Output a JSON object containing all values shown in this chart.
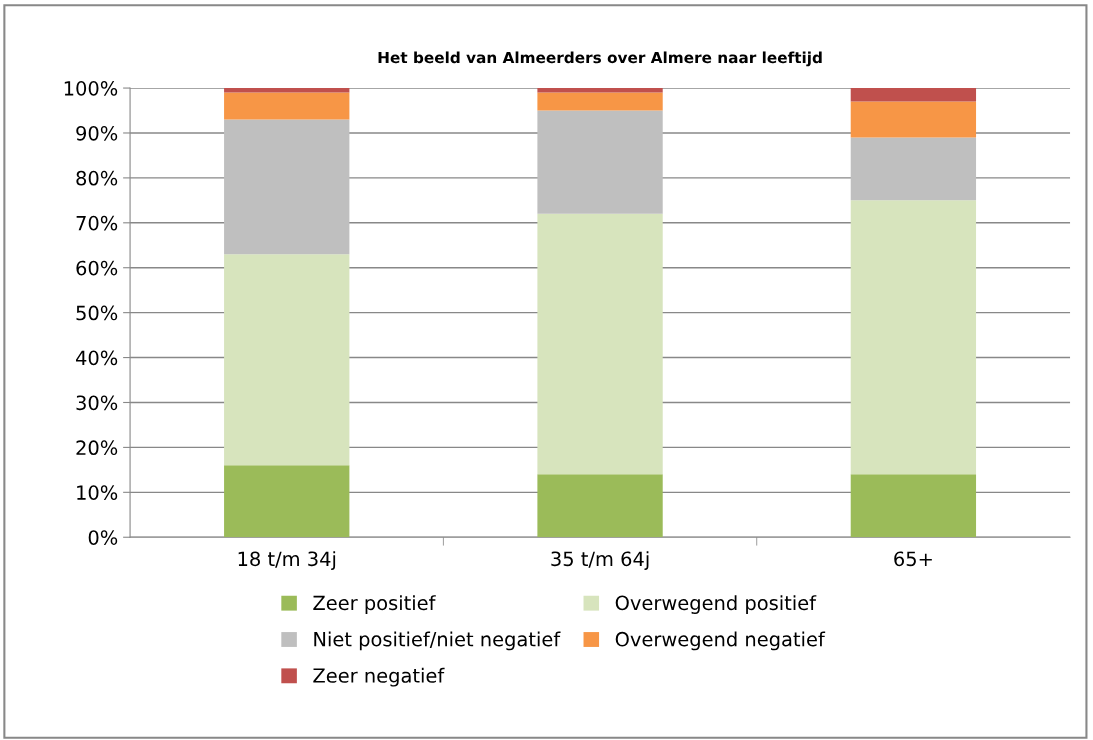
{
  "chart_data": {
    "type": "bar",
    "stacked": true,
    "title": "Het beeld van Almeerders over Almere naar leeftijd",
    "categories": [
      "18 t/m 34j",
      "35 t/m 64j",
      "65+"
    ],
    "series": [
      {
        "name": "Zeer positief",
        "color": "#9bbb59",
        "values": [
          16,
          14,
          14
        ]
      },
      {
        "name": "Overwegend positief",
        "color": "#d7e4bd",
        "values": [
          47,
          58,
          61
        ]
      },
      {
        "name": "Niet positief/niet negatief",
        "color": "#bfbfbf",
        "values": [
          30,
          23,
          14
        ]
      },
      {
        "name": "Overwegend negatief",
        "color": "#f79646",
        "values": [
          6,
          4,
          8
        ]
      },
      {
        "name": "Zeer negatief",
        "color": "#c0504d",
        "values": [
          1,
          1,
          3
        ]
      }
    ],
    "ylim": [
      0,
      100
    ],
    "yticks": [
      {
        "value": 0,
        "label": "0%"
      },
      {
        "value": 10,
        "label": "10%"
      },
      {
        "value": 20,
        "label": "20%"
      },
      {
        "value": 30,
        "label": "30%"
      },
      {
        "value": 40,
        "label": "40%"
      },
      {
        "value": 50,
        "label": "50%"
      },
      {
        "value": 60,
        "label": "60%"
      },
      {
        "value": 70,
        "label": "70%"
      },
      {
        "value": 80,
        "label": "80%"
      },
      {
        "value": 90,
        "label": "90%"
      },
      {
        "value": 100,
        "label": "100%"
      }
    ],
    "grid": "y",
    "legend": "bottom"
  }
}
